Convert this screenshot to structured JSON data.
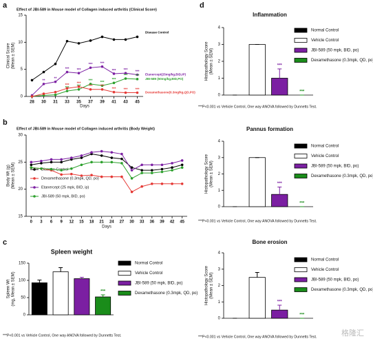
{
  "chart_data": [
    {
      "type": "line",
      "panel": "a",
      "title": "Effect of JBI-589 in Mouse model of Collagen induced arthritis (Clinical Score)",
      "ylabel": [
        "Clinical Score",
        "(Mean ± SEM)"
      ],
      "xlabel": "Days",
      "categories": [
        "28",
        "30",
        "31",
        "33",
        "35",
        "37",
        "39",
        "41",
        "43",
        "45"
      ],
      "ylim": [
        0,
        15
      ],
      "yticks": [
        0,
        5,
        10,
        15
      ],
      "legend": "inline",
      "series": [
        {
          "name": "Disease Control",
          "color": "#000000",
          "values": [
            3,
            4.5,
            6,
            10.2,
            9.8,
            10.3,
            11,
            10.5,
            10.5,
            11
          ],
          "annotations": [
            null,
            null,
            null,
            null,
            null,
            null,
            null,
            null,
            null,
            null
          ]
        },
        {
          "name": "Etanercept(25mg/kg,BID,IP)",
          "color": "#7b1fa2",
          "values": [
            0.2,
            2.3,
            2.7,
            4.5,
            4.3,
            5.3,
            5.5,
            4.2,
            4.3,
            4
          ],
          "annotations": [
            null,
            "**",
            "**",
            "***",
            "***",
            "***",
            "***",
            "***",
            "***",
            "***"
          ]
        },
        {
          "name": "JBI-589 (50mg/kg,BID,PO)",
          "color": "#2ca02c",
          "values": [
            0,
            0.2,
            0.3,
            1,
            1.3,
            2.3,
            2,
            2.5,
            3.3,
            3.2
          ],
          "annotations": [
            null,
            null,
            null,
            "***",
            "***",
            "***",
            "***",
            "***",
            "***",
            "***"
          ]
        },
        {
          "name": "Dexamethasone(0.3mg/kg,QD,PO)",
          "color": "#e53935",
          "values": [
            0,
            0.5,
            0.8,
            1.5,
            1.8,
            1.3,
            1.3,
            0.8,
            0.7,
            0.7
          ],
          "annotations": [
            null,
            null,
            null,
            "***",
            "***",
            "***",
            "***",
            "***",
            "***",
            "***"
          ]
        }
      ]
    },
    {
      "type": "line",
      "panel": "b",
      "title": "Effect of JBI-589 in Mouse model of Collagen induced arthritis (Body Weight)",
      "ylabel": [
        "Body Wt (g)",
        "(Mean ± SEM)"
      ],
      "xlabel": "Days",
      "categories": [
        "0",
        "3",
        "6",
        "9",
        "12",
        "15",
        "18",
        "21",
        "24",
        "27",
        "30",
        "33",
        "36",
        "39",
        "42",
        "45"
      ],
      "ylim": [
        15,
        30
      ],
      "yticks": [
        15,
        20,
        25,
        30
      ],
      "legend": "lower left",
      "series": [
        {
          "name": "Disease Control",
          "color": "#000000",
          "values": [
            24.5,
            24.8,
            25,
            25,
            25.5,
            25.8,
            26.5,
            26.2,
            25.8,
            25.6,
            24,
            23.5,
            23.5,
            23.7,
            24,
            24.5
          ]
        },
        {
          "name": "Dexamethasone (0.3mpk, QD, po)",
          "color": "#e53935",
          "values": [
            24,
            23.8,
            23.5,
            22.7,
            22.8,
            22.5,
            22.6,
            22.3,
            22.3,
            22.3,
            19.5,
            20.5,
            21,
            21,
            21,
            21
          ]
        },
        {
          "name": "Etanercept (25 mpk, BID, ip)",
          "color": "#7b1fa2",
          "values": [
            25,
            25.2,
            25.5,
            25.5,
            25.8,
            26.2,
            26.8,
            27,
            26.8,
            26.5,
            23.5,
            24.5,
            24.5,
            24.5,
            24.8,
            25.3
          ]
        },
        {
          "name": "JBI-589 (50 mpk, BID, po)",
          "color": "#2ca02c",
          "values": [
            24,
            23.8,
            23.7,
            23.5,
            23.8,
            24.5,
            25,
            25,
            25,
            24.8,
            22,
            23,
            23,
            23.2,
            23.5,
            24
          ]
        }
      ]
    },
    {
      "type": "bar",
      "panel": "c",
      "title": "Spleen weight",
      "ylabel": [
        "Spleen Wt",
        "(mg, Mean ± SEM)"
      ],
      "categories": [
        "Normal Control",
        "Vehicle Control",
        "JBI-589 (50 mpk, BID, po)",
        "Dexamethasone (0.3mpk, QD, po)"
      ],
      "values": [
        93,
        125,
        105,
        52
      ],
      "errors": [
        8,
        12,
        4,
        6
      ],
      "colors": [
        "#000000",
        "#ffffff",
        "#7b1fa2",
        "#1a8c1a"
      ],
      "annotations": [
        null,
        null,
        null,
        "***"
      ],
      "ylim": [
        0,
        150
      ],
      "yticks": [
        0,
        50,
        100,
        150
      ],
      "legend": "right",
      "note": "***P<0.001 vs Vehicle Control, One way ANOVA followed by Dunnetts Test."
    },
    {
      "type": "bar",
      "panel": "d",
      "title": "Inflammation",
      "ylabel": [
        "Histopathology Score",
        "(Mean ± SEM)"
      ],
      "categories": [
        "Normal Control",
        "Vehicle Control",
        "JBI-589 (50 mpk, BID, po)",
        "Dexamethasone (0.3mpk, QD, po)"
      ],
      "values": [
        0,
        3,
        1,
        0
      ],
      "errors": [
        0,
        0,
        0.55,
        0
      ],
      "colors": [
        "#000000",
        "#ffffff",
        "#7b1fa2",
        "#1a8c1a"
      ],
      "annotations": [
        null,
        null,
        "***",
        "***"
      ],
      "ylim": [
        0,
        4
      ],
      "yticks": [
        0,
        1,
        2,
        3,
        4
      ],
      "legend": "right",
      "note": "***P<0.001 vs Vehicle Control, One way ANOVA followed by Dunnetts Test."
    },
    {
      "type": "bar",
      "title": "Pannus formation",
      "ylabel": [
        "Histopathology Score",
        "(Mean ± SEM)"
      ],
      "categories": [
        "Normal Control",
        "Vehicle Control",
        "JBI-589 (50 mpk, BID, po)",
        "Dexamethasone (0.3mpk, QD, po)"
      ],
      "values": [
        0,
        3,
        0.75,
        0
      ],
      "errors": [
        0,
        0,
        0.45,
        0
      ],
      "colors": [
        "#000000",
        "#ffffff",
        "#7b1fa2",
        "#1a8c1a"
      ],
      "annotations": [
        null,
        null,
        "***",
        "***"
      ],
      "ylim": [
        0,
        4
      ],
      "yticks": [
        0,
        1,
        2,
        3,
        4
      ],
      "legend": "right",
      "note": "***P<0.001 vs Vehicle Control, One way ANOVA followed by Dunnetts Test."
    },
    {
      "type": "bar",
      "title": "Bone erosion",
      "ylabel": [
        "Histopathology Score",
        "(Mean ± SEM)"
      ],
      "categories": [
        "Normal Control",
        "Vehicle Control",
        "JBI-589 (50 mpk, BID, po)",
        "Dexamethasone (0.3mpk, QD, po)"
      ],
      "values": [
        0,
        2.5,
        0.5,
        0
      ],
      "errors": [
        0,
        0.3,
        0.3,
        0
      ],
      "colors": [
        "#000000",
        "#ffffff",
        "#7b1fa2",
        "#1a8c1a"
      ],
      "annotations": [
        null,
        null,
        "***",
        "***"
      ],
      "ylim": [
        0,
        4
      ],
      "yticks": [
        0,
        1,
        2,
        3,
        4
      ],
      "legend": "right",
      "note": "***P<0.001 vs Vehicle Control, One way ANOVA followed by Dunnetts Test."
    }
  ],
  "watermark": "格隆汇"
}
